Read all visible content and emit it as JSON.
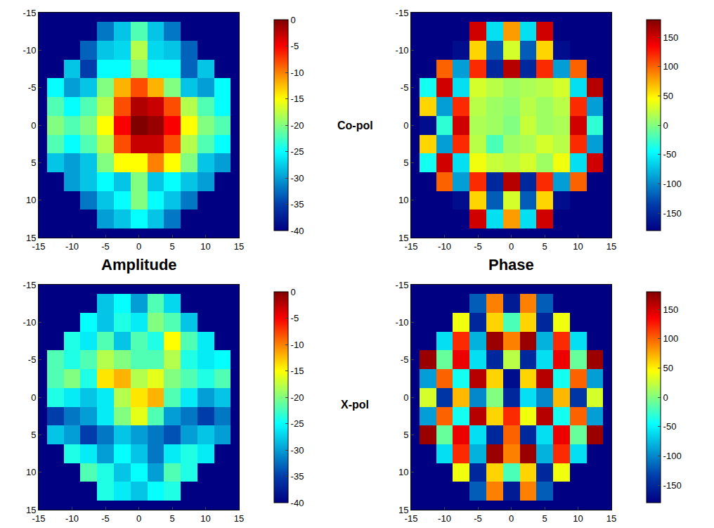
{
  "row_labels": [
    "Co-pol",
    "X-pol"
  ],
  "column_labels": [
    "Amplitude",
    "Phase"
  ],
  "chart_data": [
    {
      "type": "heatmap",
      "x": [
        -15,
        -12.5,
        -10,
        -7.5,
        -5,
        -2.5,
        0,
        2.5,
        5,
        7.5,
        10,
        12.5,
        15
      ],
      "y": [
        -15,
        -12.5,
        -10,
        -7.5,
        -5,
        -2.5,
        0,
        2.5,
        5,
        7.5,
        10,
        12.5,
        15
      ],
      "xlim": [
        -15,
        15
      ],
      "ylim": [
        15,
        -15
      ],
      "xticks": [
        -15,
        -10,
        -5,
        0,
        5,
        10,
        15
      ],
      "yticks": [
        -15,
        -10,
        -5,
        0,
        5,
        10,
        15
      ],
      "colorbar_range": [
        -40,
        0
      ],
      "colorbar_ticks": [
        0,
        -5,
        -10,
        -15,
        -20,
        -25,
        -30,
        -35,
        -40
      ],
      "z": [
        [
          null,
          null,
          null,
          null,
          null,
          null,
          null,
          null,
          null,
          null,
          null,
          null,
          null
        ],
        [
          null,
          null,
          null,
          null,
          -32,
          -28,
          -22,
          -28,
          -32,
          null,
          null,
          null,
          null
        ],
        [
          null,
          null,
          null,
          -33,
          -28,
          -27,
          -18,
          -27,
          -28,
          -33,
          null,
          null,
          null
        ],
        [
          null,
          null,
          -28,
          -35,
          -25,
          -25,
          -20,
          -25,
          -25,
          -33,
          -28,
          null,
          null
        ],
        [
          null,
          -25,
          -30,
          -28,
          -20,
          -12,
          -8,
          -12,
          -20,
          -28,
          -30,
          -25,
          null
        ],
        [
          null,
          -22,
          -25,
          -22,
          -18,
          -8,
          -2,
          -3,
          -8,
          -18,
          -22,
          -25,
          null
        ],
        [
          null,
          -20,
          -22,
          -20,
          -15,
          -5,
          0,
          -1,
          -5,
          -15,
          -20,
          -22,
          null
        ],
        [
          null,
          -22,
          -25,
          -22,
          -18,
          -8,
          -3,
          -3,
          -8,
          -18,
          -22,
          -25,
          null
        ],
        [
          null,
          -28,
          -30,
          -28,
          -20,
          -15,
          -15,
          -10,
          -15,
          -20,
          -28,
          -30,
          null
        ],
        [
          null,
          null,
          -30,
          -28,
          -25,
          -28,
          -20,
          -28,
          -25,
          -28,
          -30,
          null,
          null
        ],
        [
          null,
          null,
          null,
          -32,
          -28,
          -25,
          -20,
          -25,
          -28,
          -32,
          null,
          null,
          null
        ],
        [
          null,
          null,
          null,
          null,
          -30,
          -28,
          -25,
          -28,
          -32,
          null,
          null,
          null,
          null
        ],
        [
          null,
          null,
          null,
          null,
          null,
          null,
          null,
          null,
          null,
          null,
          null,
          null,
          null
        ]
      ]
    },
    {
      "type": "heatmap",
      "x": [
        -15,
        -12.5,
        -10,
        -7.5,
        -5,
        -2.5,
        0,
        2.5,
        5,
        7.5,
        10,
        12.5,
        15
      ],
      "y": [
        -15,
        -12.5,
        -10,
        -7.5,
        -5,
        -2.5,
        0,
        2.5,
        5,
        7.5,
        10,
        12.5,
        15
      ],
      "xlim": [
        -15,
        15
      ],
      "ylim": [
        15,
        -15
      ],
      "xticks": [
        -15,
        -10,
        -5,
        0,
        5,
        10,
        15
      ],
      "yticks": [
        -15,
        -10,
        -5,
        0,
        5,
        10,
        15
      ],
      "colorbar_range": [
        -180,
        180
      ],
      "colorbar_ticks": [
        -150,
        -100,
        -50,
        0,
        50,
        100,
        150
      ],
      "z": [
        [
          null,
          null,
          null,
          null,
          null,
          null,
          null,
          null,
          null,
          null,
          null,
          null,
          null
        ],
        [
          null,
          null,
          null,
          null,
          150,
          -60,
          80,
          -60,
          150,
          null,
          null,
          null,
          null
        ],
        [
          null,
          null,
          null,
          -170,
          60,
          -120,
          30,
          -120,
          60,
          -170,
          null,
          null,
          null
        ],
        [
          null,
          null,
          100,
          -90,
          120,
          -150,
          160,
          -150,
          120,
          -90,
          100,
          null,
          null
        ],
        [
          null,
          -40,
          150,
          -60,
          30,
          20,
          10,
          15,
          20,
          30,
          -60,
          160,
          null
        ],
        [
          null,
          60,
          -90,
          120,
          20,
          10,
          5,
          20,
          10,
          20,
          120,
          -90,
          null
        ],
        [
          null,
          -170,
          -30,
          150,
          15,
          10,
          0,
          25,
          10,
          15,
          150,
          -30,
          null
        ],
        [
          null,
          60,
          -90,
          120,
          20,
          -20,
          10,
          15,
          30,
          20,
          120,
          -90,
          null
        ],
        [
          null,
          -40,
          150,
          -60,
          40,
          25,
          20,
          30,
          10,
          40,
          -60,
          150,
          null
        ],
        [
          null,
          null,
          100,
          -90,
          120,
          -150,
          160,
          -150,
          120,
          -90,
          100,
          null,
          null
        ],
        [
          null,
          null,
          null,
          -170,
          60,
          -120,
          30,
          -120,
          60,
          -170,
          null,
          null,
          null
        ],
        [
          null,
          null,
          null,
          null,
          150,
          -60,
          80,
          -60,
          150,
          null,
          null,
          null,
          null
        ],
        [
          null,
          null,
          null,
          null,
          null,
          null,
          null,
          null,
          null,
          null,
          null,
          null,
          null
        ]
      ]
    },
    {
      "type": "heatmap",
      "x": [
        -15,
        -12.5,
        -10,
        -7.5,
        -5,
        -2.5,
        0,
        2.5,
        5,
        7.5,
        10,
        12.5,
        15
      ],
      "y": [
        -15,
        -12.5,
        -10,
        -7.5,
        -5,
        -2.5,
        0,
        2.5,
        5,
        7.5,
        10,
        12.5,
        15
      ],
      "xlim": [
        -15,
        15
      ],
      "ylim": [
        15,
        -15
      ],
      "xticks": [
        -15,
        -10,
        -5,
        0,
        5,
        10,
        15
      ],
      "yticks": [
        -15,
        -10,
        -5,
        0,
        5,
        10,
        15
      ],
      "colorbar_range": [
        -40,
        0
      ],
      "colorbar_ticks": [
        0,
        -5,
        -10,
        -15,
        -20,
        -25,
        -30,
        -35,
        -40
      ],
      "z": [
        [
          null,
          null,
          null,
          null,
          null,
          null,
          null,
          null,
          null,
          null,
          null,
          null,
          null
        ],
        [
          null,
          null,
          null,
          null,
          -28,
          -25,
          -30,
          -22,
          -27,
          null,
          null,
          null,
          null
        ],
        [
          null,
          null,
          null,
          -25,
          -28,
          -24,
          -26,
          -20,
          -22,
          -28,
          null,
          null,
          null
        ],
        [
          null,
          null,
          -24,
          -26,
          -22,
          -28,
          -22,
          -24,
          -15,
          -22,
          -26,
          null,
          null
        ],
        [
          null,
          -22,
          -24,
          -22,
          -18,
          -20,
          -22,
          -22,
          -18,
          -24,
          -26,
          -25,
          null
        ],
        [
          null,
          -22,
          -20,
          -24,
          -14,
          -12,
          -18,
          -16,
          -20,
          -22,
          -24,
          -22,
          null
        ],
        [
          null,
          -24,
          -26,
          -28,
          -26,
          -18,
          -14,
          -12,
          -22,
          -26,
          -30,
          -28,
          null
        ],
        [
          null,
          -35,
          -32,
          -30,
          -26,
          -20,
          -16,
          -22,
          -30,
          -32,
          -35,
          -32,
          null
        ],
        [
          null,
          -28,
          -30,
          -35,
          -32,
          -28,
          -30,
          -32,
          -34,
          -30,
          -28,
          -30,
          null
        ],
        [
          null,
          null,
          -24,
          -26,
          -30,
          -25,
          -28,
          -32,
          -26,
          -24,
          -26,
          null,
          null
        ],
        [
          null,
          null,
          null,
          -22,
          -24,
          -28,
          -25,
          -30,
          -22,
          -24,
          null,
          null,
          null
        ],
        [
          null,
          null,
          null,
          null,
          -24,
          -26,
          -28,
          -25,
          -24,
          null,
          null,
          null,
          null
        ],
        [
          null,
          null,
          null,
          null,
          null,
          null,
          null,
          null,
          null,
          null,
          null,
          null,
          null
        ]
      ]
    },
    {
      "type": "heatmap",
      "x": [
        -15,
        -12.5,
        -10,
        -7.5,
        -5,
        -2.5,
        0,
        2.5,
        5,
        7.5,
        10,
        12.5,
        15
      ],
      "y": [
        -15,
        -12.5,
        -10,
        -7.5,
        -5,
        -2.5,
        0,
        2.5,
        5,
        7.5,
        10,
        12.5,
        15
      ],
      "xlim": [
        -15,
        15
      ],
      "ylim": [
        15,
        -15
      ],
      "xticks": [
        -15,
        -10,
        -5,
        0,
        5,
        10,
        15
      ],
      "yticks": [
        -15,
        -10,
        -5,
        0,
        5,
        10,
        15
      ],
      "colorbar_range": [
        -180,
        180
      ],
      "colorbar_ticks": [
        -150,
        -100,
        -50,
        0,
        50,
        100,
        150
      ],
      "z": [
        [
          null,
          null,
          null,
          null,
          null,
          null,
          null,
          null,
          null,
          null,
          null,
          null,
          null
        ],
        [
          null,
          null,
          null,
          null,
          -120,
          90,
          -160,
          90,
          -120,
          null,
          null,
          null,
          null
        ],
        [
          null,
          null,
          null,
          40,
          -150,
          60,
          -20,
          60,
          -150,
          40,
          null,
          null,
          null
        ],
        [
          null,
          null,
          -60,
          120,
          -80,
          170,
          90,
          170,
          -80,
          120,
          -60,
          null,
          null
        ],
        [
          null,
          170,
          -10,
          140,
          -60,
          -150,
          20,
          -150,
          -60,
          140,
          -10,
          170,
          null
        ],
        [
          null,
          -90,
          100,
          -40,
          160,
          60,
          -170,
          60,
          160,
          -40,
          100,
          -90,
          null
        ],
        [
          null,
          30,
          -140,
          70,
          -100,
          0,
          -150,
          -60,
          -100,
          70,
          -140,
          30,
          null
        ],
        [
          null,
          -90,
          100,
          -40,
          160,
          60,
          120,
          40,
          160,
          -40,
          100,
          -90,
          null
        ],
        [
          null,
          170,
          -10,
          140,
          -60,
          -150,
          100,
          -150,
          -60,
          140,
          -10,
          170,
          null
        ],
        [
          null,
          null,
          -60,
          120,
          -80,
          170,
          90,
          170,
          -80,
          120,
          -60,
          null,
          null
        ],
        [
          null,
          null,
          null,
          40,
          -150,
          60,
          -20,
          60,
          -150,
          40,
          null,
          null,
          null
        ],
        [
          null,
          null,
          null,
          null,
          -120,
          90,
          -160,
          90,
          -120,
          null,
          null,
          null,
          null
        ],
        [
          null,
          null,
          null,
          null,
          null,
          null,
          null,
          null,
          null,
          null,
          null,
          null,
          null
        ]
      ]
    }
  ]
}
